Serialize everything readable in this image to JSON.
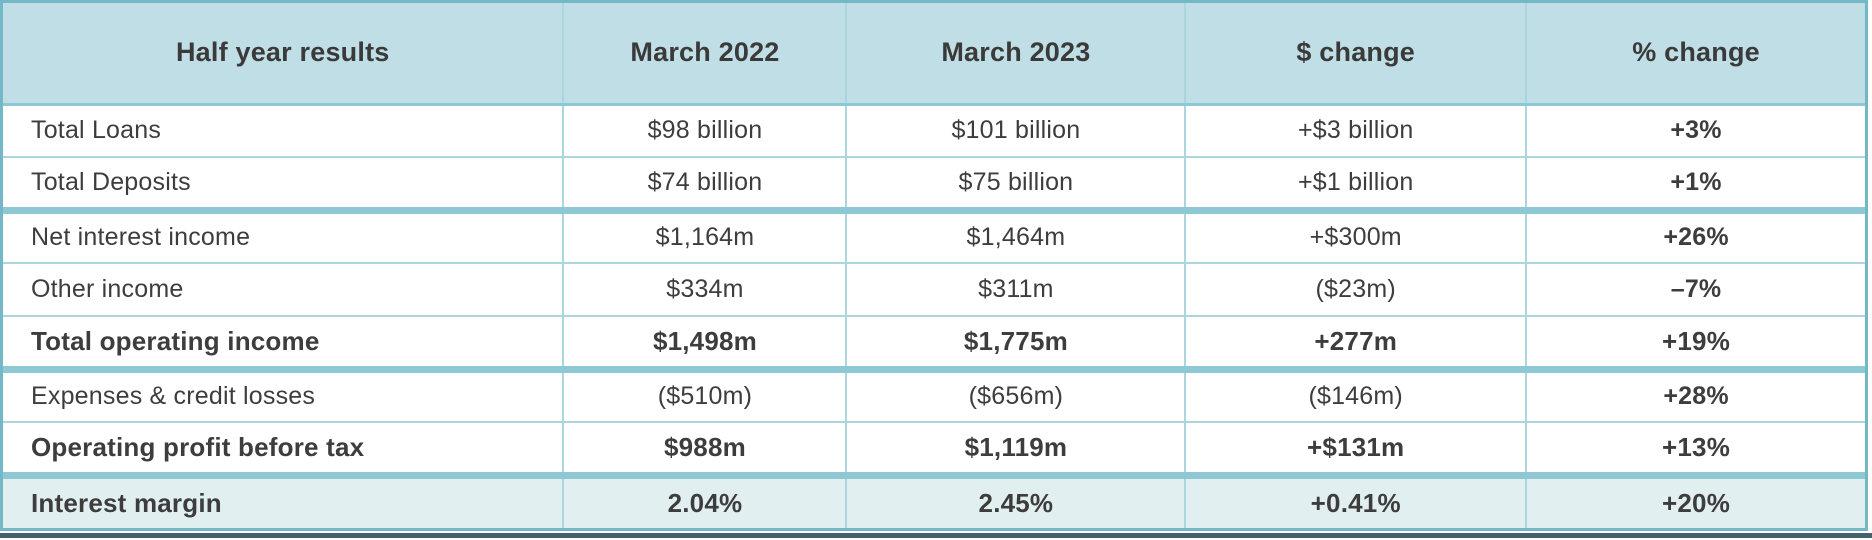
{
  "chart_data": {
    "type": "table",
    "title": "Half year results",
    "columns": [
      "Half year results",
      "March 2022",
      "March 2023",
      "$ change",
      "% change"
    ],
    "rows": [
      {
        "cells": [
          "Total Loans",
          "$98 billion",
          "$101 billion",
          "+$3 billion",
          "+3%"
        ]
      },
      {
        "cells": [
          "Total Deposits",
          "$74 billion",
          "$75 billion",
          "+$1 billion",
          "+1%"
        ]
      },
      {
        "cells": [
          "Net interest income",
          "$1,164m",
          "$1,464m",
          "+$300m",
          "+26%"
        ]
      },
      {
        "cells": [
          "Other income",
          "$334m",
          "$311m",
          "($23m)",
          "–7%"
        ]
      },
      {
        "cells": [
          "Total operating income",
          "$1,498m",
          "$1,775m",
          "+277m",
          "+19%"
        ]
      },
      {
        "cells": [
          "Expenses & credit losses",
          "($510m)",
          "($656m)",
          "($146m)",
          "+28%"
        ]
      },
      {
        "cells": [
          "Operating profit before tax",
          "$988m",
          "$1,119m",
          "+$131m",
          "+13%"
        ]
      },
      {
        "cells": [
          "Interest margin",
          "2.04%",
          "2.45%",
          "+0.41%",
          "+20%"
        ]
      }
    ],
    "emphasized_rows": [
      "Total operating income",
      "Operating profit before tax",
      "Interest margin"
    ],
    "group_separators_above": [
      "Net interest income",
      "Expenses & credit losses",
      "Interest margin"
    ]
  },
  "colors": {
    "header_bg": "#c0dee5",
    "highlight_row_bg": "#e2eff1",
    "thin_border": "#abd6de",
    "thick_border": "#8ec8d4",
    "outer_border": "#74b7c7",
    "text": "#3d3d3d",
    "bottom_bar": "#45616d"
  }
}
